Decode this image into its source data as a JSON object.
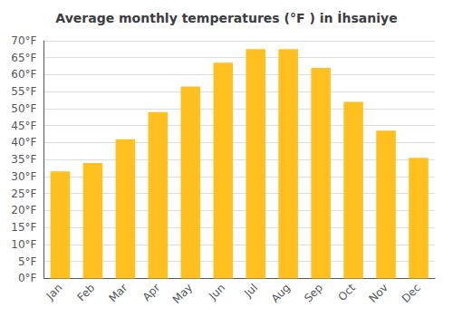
{
  "chart_data": {
    "type": "bar",
    "title": "Average monthly temperatures (°F ) in İhsaniye",
    "categories": [
      "Jan",
      "Feb",
      "Mar",
      "Apr",
      "May",
      "Jun",
      "Jul",
      "Aug",
      "Sep",
      "Oct",
      "Nov",
      "Dec"
    ],
    "values": [
      31.5,
      34.0,
      41.0,
      49.0,
      56.5,
      63.5,
      67.5,
      67.5,
      62.0,
      52.0,
      43.5,
      35.5
    ],
    "color": "#FFC020",
    "ylim": [
      0,
      70
    ],
    "yticks": [
      {
        "value": 0,
        "label": "0°F"
      },
      {
        "value": 5,
        "label": "5°F"
      },
      {
        "value": 10,
        "label": "10°F"
      },
      {
        "value": 15,
        "label": "15°F"
      },
      {
        "value": 20,
        "label": "20°F"
      },
      {
        "value": 25,
        "label": "25°F"
      },
      {
        "value": 30,
        "label": "30°F"
      },
      {
        "value": 35,
        "label": "35°F"
      },
      {
        "value": 40,
        "label": "40°F"
      },
      {
        "value": 45,
        "label": "45°F"
      },
      {
        "value": 50,
        "label": "50°F"
      },
      {
        "value": 55,
        "label": "55°F"
      },
      {
        "value": 60,
        "label": "60°F"
      },
      {
        "value": 65,
        "label": "65°F"
      },
      {
        "value": 70,
        "label": "70°F"
      }
    ],
    "grid": true
  }
}
